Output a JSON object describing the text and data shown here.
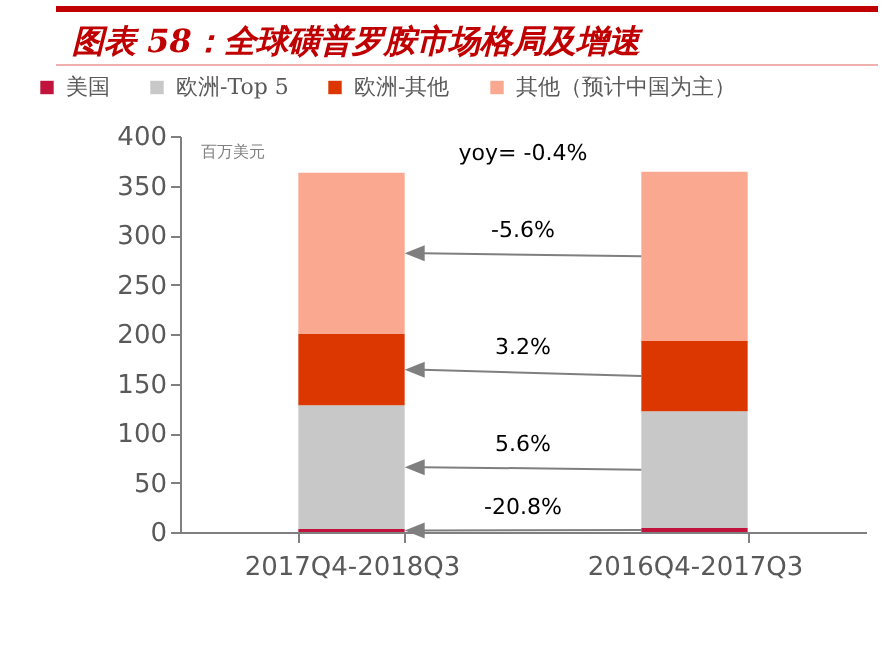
{
  "chart_data": {
    "type": "bar",
    "title": "图表 58：全球磺普罗胺市场格局及增速",
    "ylabel": "百万美元",
    "categories": [
      "2017Q4-2018Q3",
      "2016Q4-2017Q3"
    ],
    "series": [
      {
        "name": "美国",
        "color": "#c0143c",
        "values": [
          3,
          4
        ]
      },
      {
        "name": "欧洲-Top 5",
        "color": "#c8c8c8",
        "values": [
          125,
          118
        ]
      },
      {
        "name": "欧洲-其他",
        "color": "#dc3700",
        "values": [
          72,
          71
        ]
      },
      {
        "name": "其他（预计中国为主）",
        "color": "#faa890",
        "values": [
          163,
          171
        ]
      }
    ],
    "stacked": true,
    "ylim": [
      0,
      400
    ],
    "yticks": [
      0,
      50,
      100,
      150,
      200,
      250,
      300,
      350,
      400
    ],
    "grid": false,
    "legend": "top",
    "annotations": [
      "yoy= -0.4%",
      "-5.6%",
      "3.2%",
      "5.6%",
      "-20.8%"
    ]
  }
}
